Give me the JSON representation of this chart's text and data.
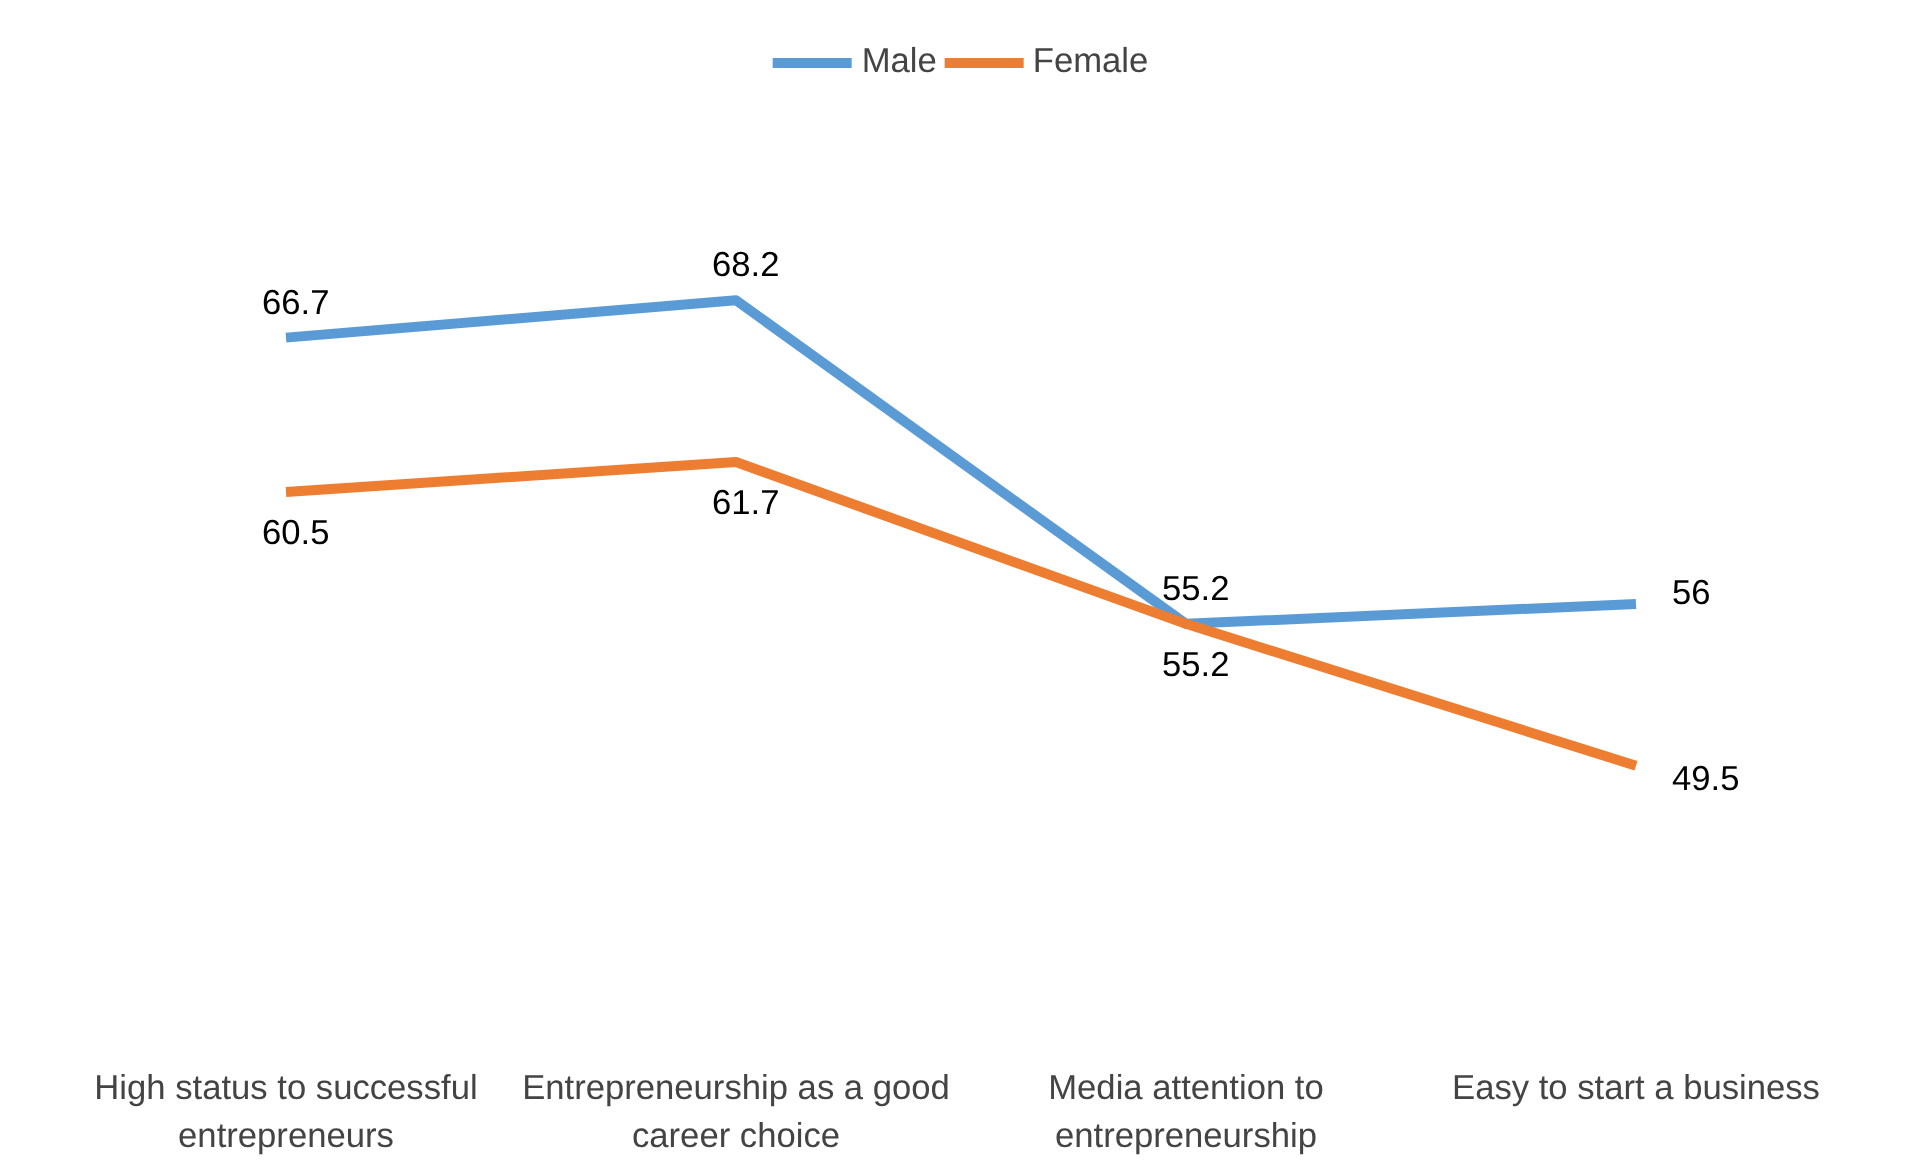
{
  "chart_data": {
    "type": "line",
    "categories": [
      "High status to successful entrepreneurs",
      "Entrepreneurship as a good career choice",
      "Media attention to entrepreneurship",
      "Easy to start a business"
    ],
    "series": [
      {
        "name": "Male",
        "color": "#5b9bd5",
        "values": [
          66.7,
          68.2,
          55.2,
          56
        ]
      },
      {
        "name": "Female",
        "color": "#ed7d31",
        "values": [
          60.5,
          61.7,
          55.2,
          49.5
        ]
      }
    ],
    "tick_labels": "x",
    "data_labels": true,
    "legend": "top",
    "grid": false,
    "marker": "none",
    "line_style": "solid"
  }
}
